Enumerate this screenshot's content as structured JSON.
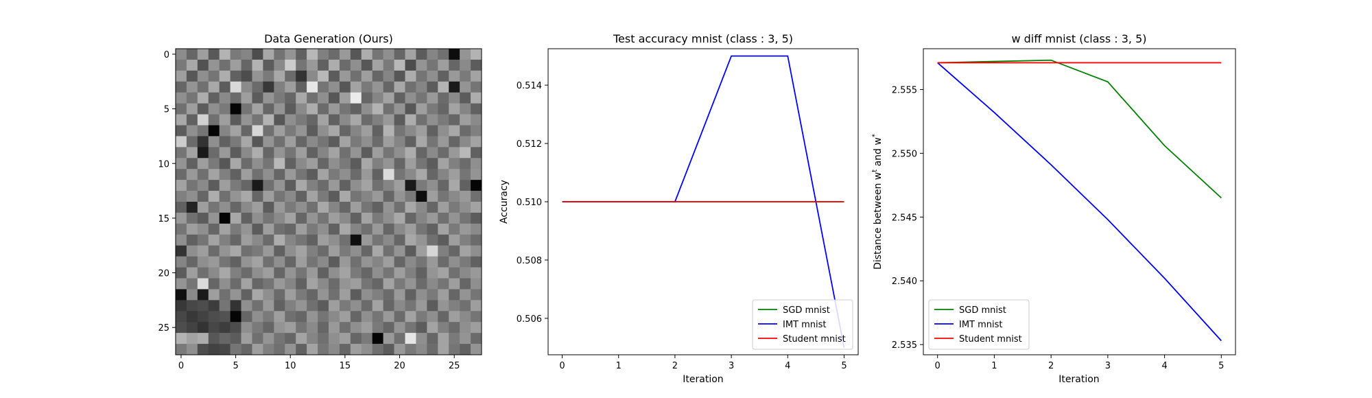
{
  "chart_data": [
    {
      "type": "heatmap",
      "title": "Data Generation (Ours)",
      "colormap": "gray",
      "rows": 28,
      "cols": 28,
      "xlim": [
        -0.5,
        27.5
      ],
      "ylim": [
        27.5,
        -0.5
      ],
      "xticks": [
        0,
        5,
        10,
        15,
        20,
        25
      ],
      "yticks": [
        0,
        5,
        10,
        15,
        20,
        25
      ],
      "values": [
        [
          0.55,
          0.4,
          0.62,
          0.35,
          0.7,
          0.48,
          0.52,
          0.3,
          0.66,
          0.45,
          0.58,
          0.38,
          0.72,
          0.5,
          0.42,
          0.6,
          0.34,
          0.68,
          0.46,
          0.56,
          0.4,
          0.64,
          0.36,
          0.52,
          0.44,
          0.05,
          0.58,
          0.7
        ],
        [
          0.48,
          0.66,
          0.32,
          0.58,
          0.44,
          0.62,
          0.4,
          0.7,
          0.36,
          0.54,
          0.8,
          0.46,
          0.6,
          0.38,
          0.68,
          0.42,
          0.56,
          0.34,
          0.64,
          0.48,
          0.72,
          0.3,
          0.58,
          0.46,
          0.62,
          0.4,
          0.54,
          0.36
        ],
        [
          0.62,
          0.34,
          0.56,
          0.46,
          0.68,
          0.38,
          0.3,
          0.58,
          0.48,
          0.66,
          0.42,
          0.2,
          0.54,
          0.72,
          0.36,
          0.6,
          0.44,
          0.62,
          0.4,
          0.52,
          0.34,
          0.68,
          0.46,
          0.56,
          0.38,
          0.6,
          0.48,
          0.64
        ],
        [
          0.4,
          0.58,
          0.44,
          0.66,
          0.36,
          0.85,
          0.54,
          0.42,
          0.22,
          0.5,
          0.62,
          0.38,
          0.9,
          0.46,
          0.56,
          0.34,
          0.64,
          0.48,
          0.58,
          0.4,
          0.66,
          0.44,
          0.52,
          0.36,
          0.7,
          0.1,
          0.58,
          0.46
        ],
        [
          0.56,
          0.46,
          0.68,
          0.38,
          0.54,
          0.42,
          0.62,
          0.36,
          0.58,
          0.48,
          0.4,
          0.66,
          0.44,
          0.56,
          0.34,
          0.62,
          0.92,
          0.4,
          0.52,
          0.64,
          0.38,
          0.56,
          0.46,
          0.6,
          0.42,
          0.54,
          0.36,
          0.68
        ],
        [
          0.44,
          0.62,
          0.36,
          0.56,
          0.48,
          0.02,
          0.46,
          0.64,
          0.4,
          0.58,
          0.36,
          0.54,
          0.68,
          0.42,
          0.6,
          0.46,
          0.38,
          0.56,
          0.7,
          0.44,
          0.58,
          0.34,
          0.62,
          0.48,
          0.4,
          0.64,
          0.52,
          0.38
        ],
        [
          0.66,
          0.38,
          0.82,
          0.44,
          0.62,
          0.36,
          0.58,
          0.46,
          0.7,
          0.34,
          0.56,
          0.48,
          0.4,
          0.64,
          0.38,
          0.54,
          0.66,
          0.42,
          0.5,
          0.6,
          0.36,
          0.68,
          0.44,
          0.56,
          0.48,
          0.4,
          0.62,
          0.54
        ],
        [
          0.36,
          0.56,
          0.46,
          0.02,
          0.52,
          0.64,
          0.4,
          0.84,
          0.44,
          0.62,
          0.48,
          0.58,
          0.36,
          0.56,
          0.66,
          0.4,
          0.52,
          0.62,
          0.38,
          0.7,
          0.46,
          0.54,
          0.62,
          0.38,
          0.56,
          0.66,
          0.42,
          0.5
        ],
        [
          0.8,
          0.42,
          0.2,
          0.56,
          0.38,
          0.48,
          0.66,
          0.34,
          0.58,
          0.44,
          0.62,
          0.4,
          0.54,
          0.46,
          0.36,
          0.64,
          0.48,
          0.56,
          0.42,
          0.62,
          0.52,
          0.38,
          0.66,
          0.46,
          0.6,
          0.4,
          0.54,
          0.64
        ],
        [
          0.46,
          0.64,
          0.1,
          0.42,
          0.6,
          0.36,
          0.54,
          0.68,
          0.4,
          0.58,
          0.46,
          0.62,
          0.38,
          0.52,
          0.64,
          0.44,
          0.58,
          0.36,
          0.62,
          0.46,
          0.56,
          0.68,
          0.4,
          0.54,
          0.42,
          0.6,
          0.72,
          0.38
        ],
        [
          0.58,
          0.38,
          0.62,
          0.48,
          0.34,
          0.66,
          0.42,
          0.56,
          0.46,
          0.72,
          0.38,
          0.54,
          0.62,
          0.4,
          0.56,
          0.48,
          0.36,
          0.66,
          0.5,
          0.58,
          0.4,
          0.62,
          0.46,
          0.36,
          0.64,
          0.5,
          0.42,
          0.56
        ],
        [
          0.42,
          0.6,
          0.44,
          0.64,
          0.5,
          0.38,
          0.62,
          0.44,
          0.56,
          0.4,
          0.6,
          0.46,
          0.36,
          0.64,
          0.48,
          0.56,
          0.42,
          0.6,
          0.38,
          0.86,
          0.46,
          0.54,
          0.66,
          0.4,
          0.52,
          0.62,
          0.46,
          0.58
        ],
        [
          0.64,
          0.46,
          0.54,
          0.36,
          0.62,
          0.48,
          0.4,
          0.1,
          0.44,
          0.58,
          0.36,
          0.66,
          0.5,
          0.42,
          0.6,
          0.38,
          0.56,
          0.64,
          0.44,
          0.52,
          0.62,
          0.1,
          0.48,
          0.56,
          0.4,
          0.66,
          0.38,
          0.02
        ],
        [
          0.5,
          0.56,
          0.4,
          0.68,
          0.44,
          0.58,
          0.66,
          0.4,
          0.62,
          0.46,
          0.54,
          0.38,
          0.64,
          0.48,
          0.36,
          0.66,
          0.46,
          0.52,
          0.6,
          0.4,
          0.58,
          0.48,
          0.05,
          0.62,
          0.46,
          0.54,
          0.6,
          0.44
        ],
        [
          0.38,
          0.14,
          0.62,
          0.46,
          0.56,
          0.4,
          0.54,
          0.62,
          0.36,
          0.6,
          0.48,
          0.56,
          0.44,
          0.66,
          0.52,
          0.4,
          0.62,
          0.46,
          0.38,
          0.58,
          0.44,
          0.66,
          0.54,
          0.4,
          0.62,
          0.48,
          0.56,
          0.64
        ],
        [
          0.6,
          0.44,
          0.36,
          0.58,
          0.02,
          0.66,
          0.38,
          0.56,
          0.46,
          0.54,
          0.64,
          0.4,
          0.58,
          0.46,
          0.62,
          0.54,
          0.38,
          0.64,
          0.48,
          0.56,
          0.66,
          0.4,
          0.52,
          0.6,
          0.44,
          0.58,
          0.46,
          0.36
        ],
        [
          0.46,
          0.62,
          0.56,
          0.4,
          0.64,
          0.48,
          0.58,
          0.36,
          0.62,
          0.44,
          0.4,
          0.62,
          0.48,
          0.56,
          0.38,
          0.66,
          0.52,
          0.44,
          0.6,
          0.4,
          0.54,
          0.62,
          0.46,
          0.38,
          0.64,
          0.48,
          0.6,
          0.54
        ],
        [
          0.56,
          0.38,
          0.46,
          0.64,
          0.5,
          0.4,
          0.62,
          0.54,
          0.42,
          0.68,
          0.52,
          0.46,
          0.38,
          0.62,
          0.56,
          0.44,
          0.06,
          0.6,
          0.46,
          0.54,
          0.4,
          0.66,
          0.58,
          0.44,
          0.36,
          0.62,
          0.5,
          0.42
        ],
        [
          0.2,
          0.56,
          0.62,
          0.42,
          0.58,
          0.66,
          0.44,
          0.48,
          0.6,
          0.38,
          0.56,
          0.64,
          0.5,
          0.42,
          0.62,
          0.48,
          0.56,
          0.4,
          0.66,
          0.44,
          0.58,
          0.36,
          0.62,
          0.84,
          0.5,
          0.4,
          0.64,
          0.56
        ],
        [
          0.52,
          0.4,
          0.56,
          0.6,
          0.46,
          0.38,
          0.58,
          0.64,
          0.44,
          0.56,
          0.4,
          0.62,
          0.46,
          0.54,
          0.36,
          0.6,
          0.44,
          0.58,
          0.52,
          0.62,
          0.4,
          0.54,
          0.46,
          0.6,
          0.42,
          0.56,
          0.48,
          0.38
        ],
        [
          0.36,
          0.62,
          0.44,
          0.54,
          0.66,
          0.5,
          0.42,
          0.56,
          0.62,
          0.4,
          0.58,
          0.46,
          0.6,
          0.38,
          0.56,
          0.64,
          0.48,
          0.4,
          0.56,
          0.46,
          0.62,
          0.5,
          0.38,
          0.58,
          0.64,
          0.44,
          0.54,
          0.6
        ],
        [
          0.58,
          0.46,
          0.86,
          0.4,
          0.56,
          0.42,
          0.64,
          0.4,
          0.46,
          0.6,
          0.52,
          0.38,
          0.64,
          0.54,
          0.42,
          0.58,
          0.62,
          0.46,
          0.4,
          0.64,
          0.48,
          0.58,
          0.42,
          0.54,
          0.46,
          0.62,
          0.4,
          0.56
        ],
        [
          0.06,
          0.54,
          0.1,
          0.62,
          0.44,
          0.58,
          0.38,
          0.66,
          0.56,
          0.42,
          0.62,
          0.48,
          0.4,
          0.58,
          0.44,
          0.62,
          0.36,
          0.56,
          0.5,
          0.42,
          0.6,
          0.38,
          0.56,
          0.48,
          0.62,
          0.4,
          0.58,
          0.46
        ],
        [
          0.22,
          0.28,
          0.3,
          0.24,
          0.46,
          0.2,
          0.56,
          0.44,
          0.6,
          0.38,
          0.5,
          0.58,
          0.44,
          0.36,
          0.62,
          0.48,
          0.56,
          0.42,
          0.64,
          0.4,
          0.54,
          0.46,
          0.6,
          0.36,
          0.58,
          0.5,
          0.44,
          0.62
        ],
        [
          0.28,
          0.22,
          0.26,
          0.3,
          0.32,
          0.02,
          0.4,
          0.56,
          0.48,
          0.62,
          0.44,
          0.4,
          0.58,
          0.46,
          0.54,
          0.62,
          0.4,
          0.56,
          0.46,
          0.6,
          0.42,
          0.64,
          0.48,
          0.56,
          0.4,
          0.62,
          0.54,
          0.46
        ],
        [
          0.3,
          0.26,
          0.2,
          0.28,
          0.24,
          0.3,
          0.56,
          0.48,
          0.4,
          0.58,
          0.62,
          0.46,
          0.54,
          0.4,
          0.6,
          0.44,
          0.56,
          0.62,
          0.48,
          0.4,
          0.58,
          0.46,
          0.36,
          0.64,
          0.5,
          0.42,
          0.56,
          0.62
        ],
        [
          0.7,
          0.64,
          0.68,
          0.34,
          0.4,
          0.36,
          0.62,
          0.44,
          0.58,
          0.46,
          0.4,
          0.64,
          0.52,
          0.44,
          0.56,
          0.62,
          0.4,
          0.48,
          0.02,
          0.6,
          0.44,
          0.9,
          0.56,
          0.4,
          0.64,
          0.48,
          0.58,
          0.42
        ],
        [
          0.48,
          0.56,
          0.3,
          0.26,
          0.28,
          0.46,
          0.4,
          0.62,
          0.5,
          0.44,
          0.58,
          0.38,
          0.64,
          0.46,
          0.54,
          0.4,
          0.62,
          0.56,
          0.44,
          0.36,
          0.6,
          0.48,
          0.54,
          0.42,
          0.64,
          0.46,
          0.38,
          0.58
        ]
      ]
    },
    {
      "type": "line",
      "title": "Test accuracy mnist (class : 3, 5)",
      "xlabel": "Iteration",
      "ylabel": "Accuracy",
      "xlim": [
        -0.25,
        5.25
      ],
      "ylim": [
        0.50475,
        0.51525
      ],
      "xticks": [
        0,
        1,
        2,
        3,
        4,
        5
      ],
      "yticks": [
        0.506,
        0.508,
        0.51,
        0.512,
        0.514
      ],
      "ytick_labels": [
        "0.506",
        "0.508",
        "0.510",
        "0.512",
        "0.514"
      ],
      "x": [
        0,
        1,
        2,
        3,
        4,
        5
      ],
      "series": [
        {
          "name": "SGD mnist",
          "color": "#008000",
          "values": [
            0.51,
            0.51,
            0.51,
            0.51,
            0.51,
            0.51
          ]
        },
        {
          "name": "IMT mnist",
          "color": "#0000ff",
          "values": [
            0.51,
            0.51,
            0.51,
            0.515,
            0.515,
            0.505
          ]
        },
        {
          "name": "Student mnist",
          "color": "#ff0000",
          "values": [
            0.51,
            0.51,
            0.51,
            0.51,
            0.51,
            0.51
          ]
        }
      ],
      "legend": "lower-right",
      "grid": false
    },
    {
      "type": "line",
      "title": "w diff mnist (class : 3, 5)",
      "xlabel": "Iteration",
      "ylabel": "Distance between w",
      "ylabel_sup1": "t",
      "ylabel_mid": " and w",
      "ylabel_sup2": "*",
      "xlim": [
        -0.25,
        5.25
      ],
      "ylim": [
        2.5342,
        2.5582
      ],
      "xticks": [
        0,
        1,
        2,
        3,
        4,
        5
      ],
      "yticks": [
        2.535,
        2.54,
        2.545,
        2.55,
        2.555
      ],
      "ytick_labels": [
        "2.535",
        "2.540",
        "2.545",
        "2.550",
        "2.555"
      ],
      "x": [
        0,
        1,
        2,
        3,
        4,
        5
      ],
      "series": [
        {
          "name": "SGD mnist",
          "color": "#008000",
          "values": [
            2.5571,
            2.5572,
            2.5573,
            2.5556,
            2.5506,
            2.5465
          ]
        },
        {
          "name": "IMT mnist",
          "color": "#0000ff",
          "values": [
            2.5571,
            2.5532,
            2.5491,
            2.5448,
            2.5402,
            2.5353
          ]
        },
        {
          "name": "Student mnist",
          "color": "#ff0000",
          "values": [
            2.5571,
            2.5571,
            2.5571,
            2.5571,
            2.5571,
            2.5571
          ]
        }
      ],
      "legend": "lower-left",
      "grid": false
    }
  ]
}
